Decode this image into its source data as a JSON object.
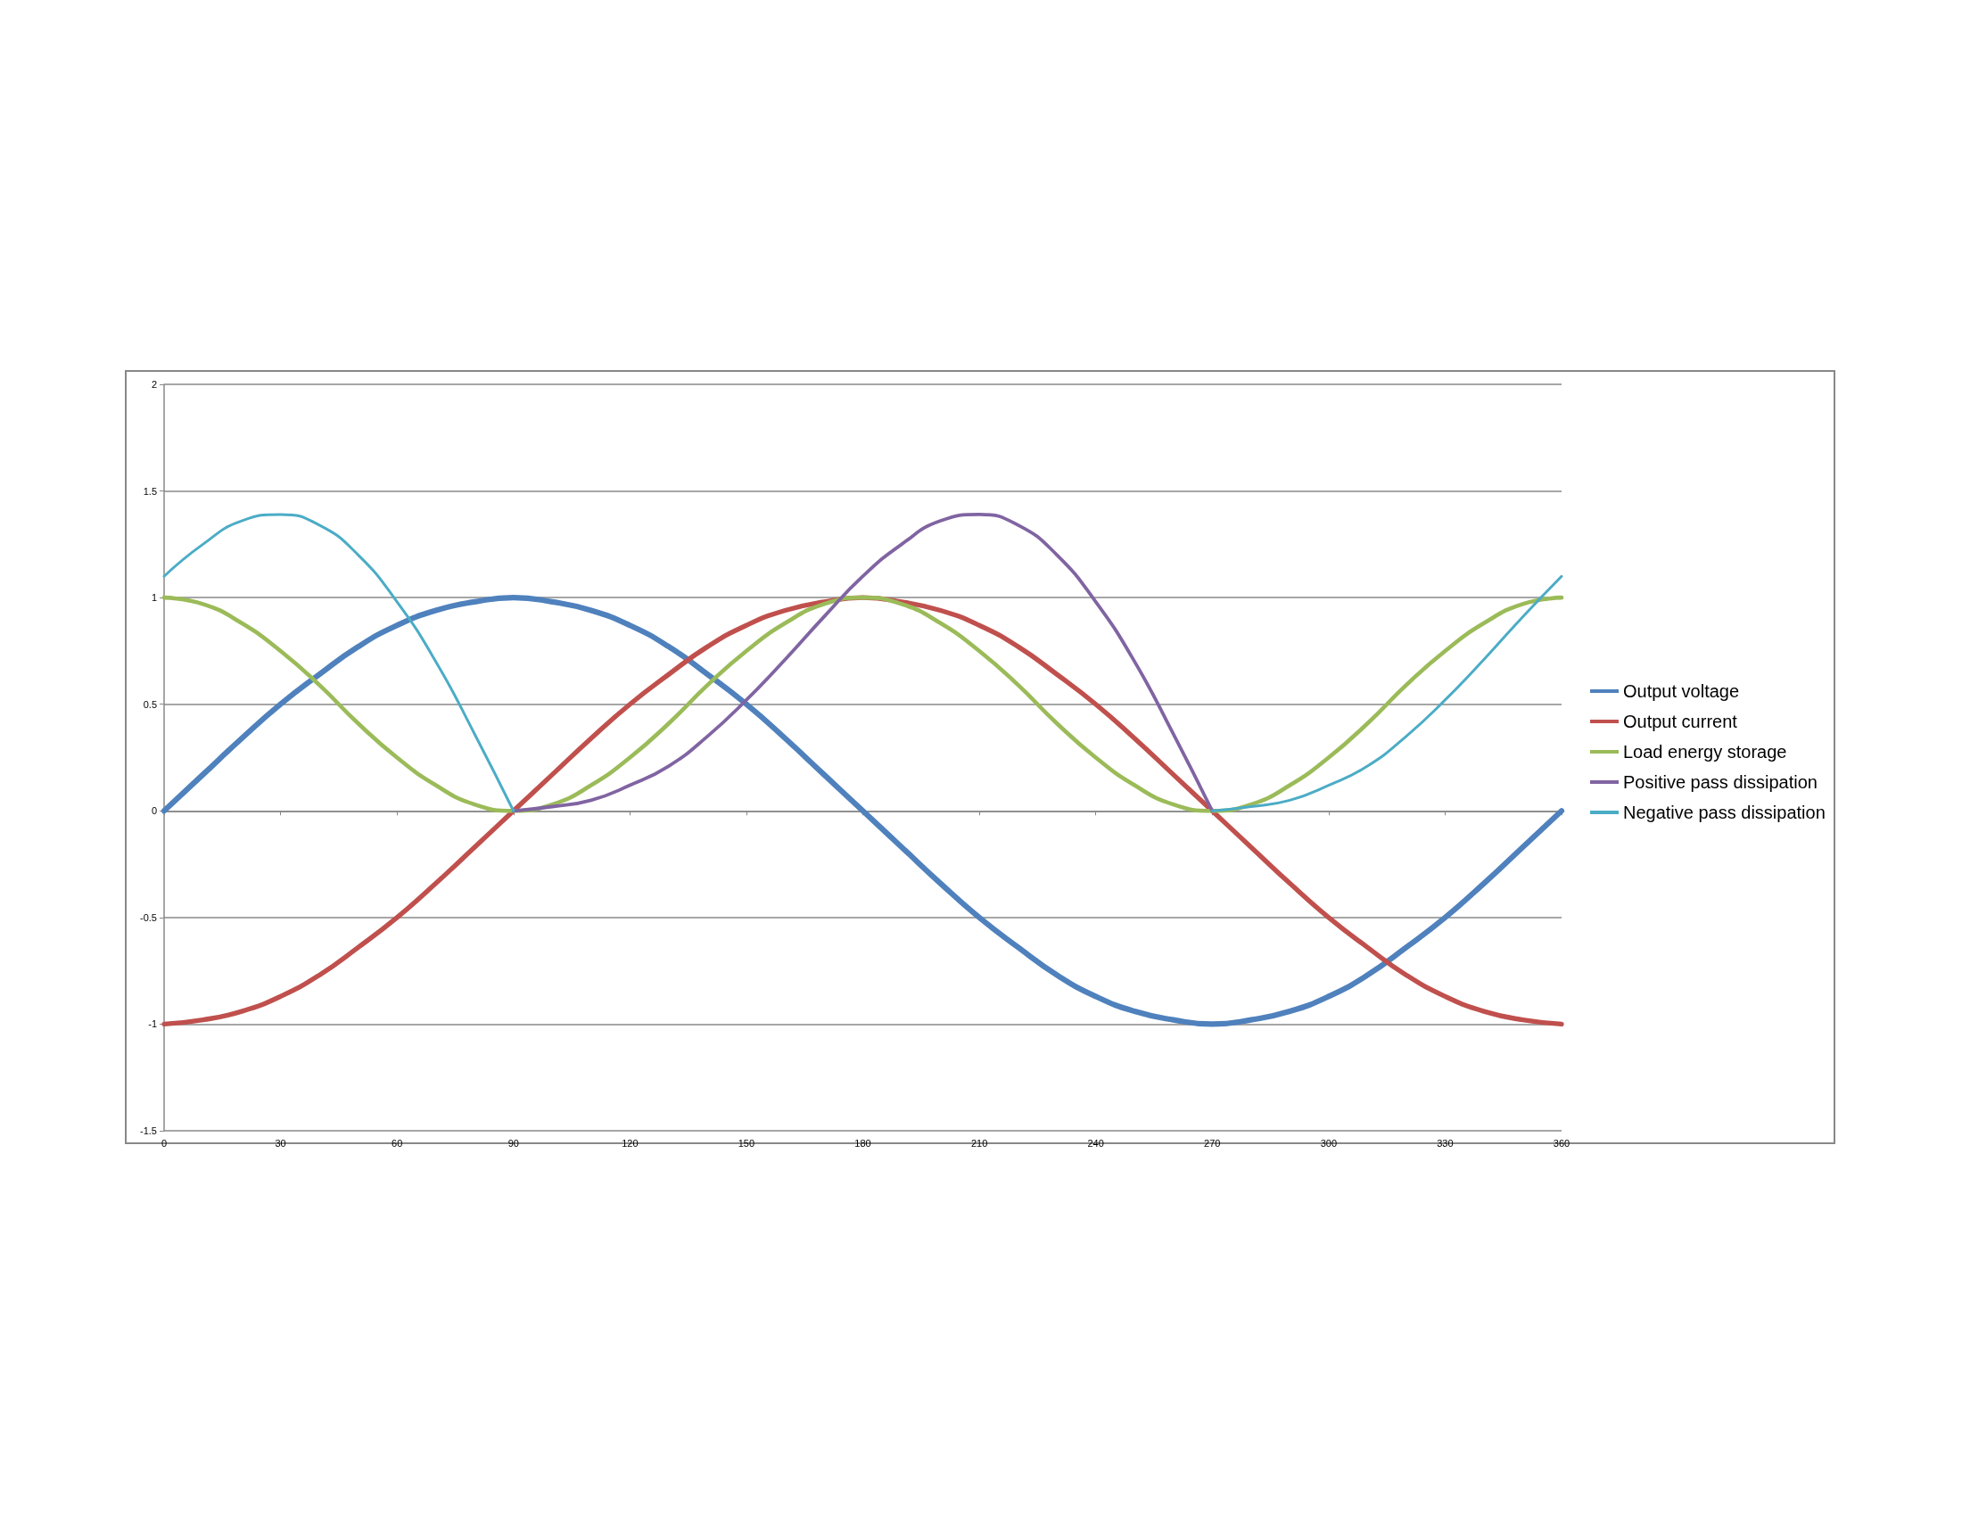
{
  "chart_data": {
    "type": "line",
    "x": [
      0,
      10,
      20,
      30,
      40,
      50,
      60,
      70,
      80,
      90,
      100,
      110,
      120,
      130,
      140,
      150,
      160,
      170,
      180,
      190,
      200,
      210,
      220,
      230,
      240,
      250,
      260,
      270,
      280,
      290,
      300,
      310,
      320,
      330,
      340,
      350,
      360
    ],
    "series": [
      {
        "name": "Output voltage",
        "color": "#4f81bd",
        "values": [
          0,
          0.17,
          0.34,
          0.5,
          0.64,
          0.77,
          0.87,
          0.94,
          0.98,
          1,
          0.98,
          0.94,
          0.87,
          0.77,
          0.64,
          0.5,
          0.34,
          0.17,
          0,
          -0.17,
          -0.34,
          -0.5,
          -0.64,
          -0.77,
          -0.87,
          -0.94,
          -0.98,
          -1,
          -0.98,
          -0.94,
          -0.87,
          -0.77,
          -0.64,
          -0.5,
          -0.34,
          -0.17,
          0
        ]
      },
      {
        "name": "Output current",
        "color": "#c0504d",
        "values": [
          -1,
          -0.98,
          -0.94,
          -0.87,
          -0.77,
          -0.64,
          -0.5,
          -0.34,
          -0.17,
          0,
          0.17,
          0.34,
          0.5,
          0.64,
          0.77,
          0.87,
          0.94,
          0.98,
          1,
          0.98,
          0.94,
          0.87,
          0.77,
          0.64,
          0.5,
          0.34,
          0.17,
          0,
          -0.17,
          -0.34,
          -0.5,
          -0.64,
          -0.77,
          -0.87,
          -0.94,
          -0.98,
          -1
        ]
      },
      {
        "name": "Load energy storage",
        "color": "#9bbb59",
        "values": [
          1,
          0.97,
          0.88,
          0.75,
          0.59,
          0.41,
          0.25,
          0.12,
          0.03,
          0,
          0.03,
          0.12,
          0.25,
          0.41,
          0.59,
          0.75,
          0.88,
          0.97,
          1,
          0.97,
          0.88,
          0.75,
          0.59,
          0.41,
          0.25,
          0.12,
          0.03,
          0,
          0.03,
          0.12,
          0.25,
          0.41,
          0.59,
          0.75,
          0.88,
          0.97,
          1
        ]
      },
      {
        "name": "Positive pass dissipation",
        "color": "#8064a2",
        "values": [
          null,
          null,
          null,
          null,
          null,
          null,
          null,
          null,
          null,
          0,
          0.02,
          0.05,
          0.12,
          0.21,
          0.35,
          0.52,
          0.71,
          0.91,
          1.1,
          1.25,
          1.36,
          1.39,
          1.34,
          1.2,
          0.98,
          0.7,
          0.36,
          0,
          null,
          null,
          null,
          null,
          null,
          null,
          null,
          null,
          null
        ]
      },
      {
        "name": "Negative pass dissipation",
        "color": "#4bacc6",
        "values": [
          1.1,
          1.25,
          1.36,
          1.39,
          1.34,
          1.2,
          0.98,
          0.7,
          0.36,
          0,
          null,
          null,
          null,
          null,
          null,
          null,
          null,
          null,
          null,
          null,
          null,
          null,
          null,
          null,
          null,
          null,
          null,
          0,
          0.02,
          0.05,
          0.12,
          0.21,
          0.35,
          0.52,
          0.71,
          0.91,
          1.1
        ]
      }
    ],
    "xlim": [
      0,
      360
    ],
    "xticks": [
      0,
      30,
      60,
      90,
      120,
      150,
      180,
      210,
      240,
      270,
      300,
      330,
      360
    ],
    "ylim": [
      -1.5,
      2
    ],
    "yticks": [
      -1.5,
      -1,
      -0.5,
      0,
      0.5,
      1,
      1.5,
      2
    ],
    "grid": "y",
    "legend": "right",
    "marker": "none",
    "line_style": "solid"
  }
}
